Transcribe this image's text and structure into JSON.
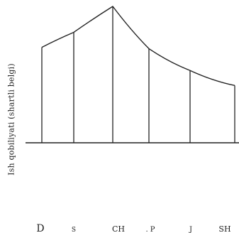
{
  "chart_data": {
    "type": "area",
    "title": "",
    "xlabel": "",
    "ylabel": "Ish qobiliyati (shartli belgi)",
    "categories": [
      "D",
      "S",
      "CH",
      "P",
      "J",
      "SH"
    ],
    "tick_labels": [
      "D",
      "S",
      "CH",
      ". P",
      "J",
      "SH"
    ],
    "values": [
      0.7,
      0.81,
      1.0,
      0.69,
      0.53,
      0.42
    ],
    "ylim": [
      0,
      1
    ],
    "grid": false,
    "legend": "none",
    "line_color": "#222222",
    "background": "#ffffff"
  }
}
